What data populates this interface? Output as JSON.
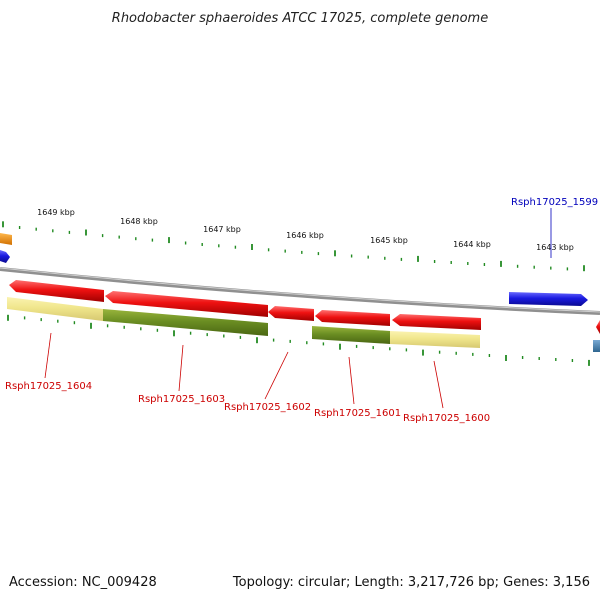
{
  "title": "Rhodobacter sphaeroides ATCC 17025, complete genome",
  "footer": {
    "accession": "Accession: NC_009428",
    "summary": "Topology: circular; Length: 3,217,726 bp; Genes: 3,156"
  },
  "scale": {
    "unit": "kbp",
    "ticks": [
      {
        "kbp": 1649,
        "label": "1649 kbp"
      },
      {
        "kbp": 1648,
        "label": "1648 kbp"
      },
      {
        "kbp": 1647,
        "label": "1647 kbp"
      },
      {
        "kbp": 1646,
        "label": "1646 kbp"
      },
      {
        "kbp": 1645,
        "label": "1645 kbp"
      },
      {
        "kbp": 1644,
        "label": "1644 kbp"
      },
      {
        "kbp": 1643,
        "label": "1643 kbp"
      }
    ]
  },
  "colors": {
    "backbone": "#8a8a8a",
    "cds_red": "#ee1111",
    "cds_blue": "#1a1ae0",
    "cds_orange": "#f08c00",
    "cds_steel": "#4a84b4",
    "tick_green": "#228b22",
    "olive": "#6b8e23",
    "khaki": "#f0e68c",
    "label_red": "#cc0000",
    "label_blue": "#0000bb"
  },
  "genes": [
    {
      "id": "Rsph17025_1604",
      "strand": "-",
      "color": "red",
      "cog": "khaki"
    },
    {
      "id": "Rsph17025_1603",
      "strand": "-",
      "color": "red",
      "cog": "olive"
    },
    {
      "id": "Rsph17025_1602",
      "strand": "-",
      "color": "red"
    },
    {
      "id": "Rsph17025_1601",
      "strand": "-",
      "color": "red",
      "cog": "olive"
    },
    {
      "id": "Rsph17025_1600",
      "strand": "-",
      "color": "red",
      "cog": "khaki"
    },
    {
      "id": "Rsph17025_1599",
      "strand": "+",
      "color": "blue"
    }
  ]
}
